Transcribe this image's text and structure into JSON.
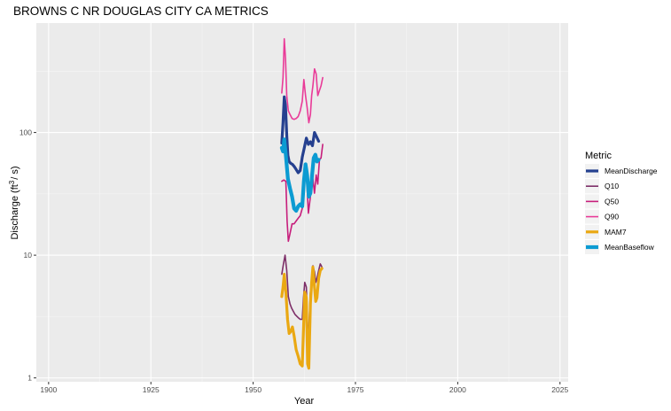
{
  "chart_data": {
    "type": "line",
    "title": "BROWNS C NR DOUGLAS CITY CA  METRICS",
    "xlabel": "Year",
    "ylabel_main": "Discharge (ft",
    "ylabel_sup": "3",
    "ylabel_mid": "/ s)",
    "xlim": [
      1897,
      2027
    ],
    "ylim": [
      0.93,
      780
    ],
    "log_y": true,
    "x_ticks": [
      1900,
      1925,
      1950,
      1975,
      2000,
      2025
    ],
    "x_tick_labels": [
      "1900",
      "1925",
      "1950",
      "1975",
      "2000",
      "2025"
    ],
    "y_ticks": [
      1,
      10,
      100
    ],
    "y_tick_labels": [
      "1",
      "10",
      "100"
    ],
    "grid": true,
    "legend": {
      "title": "Metric",
      "position": "right"
    },
    "series": [
      {
        "name": "MeanDischarge",
        "color": "#25408f",
        "width": 3.2,
        "x": [
          1957.0,
          1957.3,
          1957.6,
          1957.9,
          1958.2,
          1958.5,
          1958.8,
          1959.2,
          1959.6,
          1960.0,
          1960.5,
          1961.0,
          1961.5,
          1962.0,
          1962.5,
          1963.0,
          1963.5,
          1964.0,
          1964.5,
          1965.0,
          1965.5,
          1966.0
        ],
        "y": [
          82,
          120,
          195,
          165,
          95,
          65,
          58,
          56,
          55,
          53,
          50,
          47,
          49,
          63,
          75,
          90,
          80,
          84,
          78,
          100,
          92,
          85
        ]
      },
      {
        "name": "Q10",
        "color": "#7d2e68",
        "width": 1.6,
        "x": [
          1957.0,
          1957.4,
          1957.8,
          1958.2,
          1958.6,
          1959.0,
          1959.4,
          1959.8,
          1960.2,
          1960.6,
          1961.0,
          1961.5,
          1962.0,
          1962.3,
          1962.6,
          1963.0,
          1963.3,
          1963.6,
          1964.0,
          1964.3,
          1964.6,
          1965.0,
          1965.3,
          1965.6,
          1966.0,
          1966.4,
          1966.8
        ],
        "y": [
          7.0,
          8.5,
          10.0,
          7.5,
          4.6,
          4.0,
          3.7,
          3.5,
          3.3,
          3.2,
          3.1,
          3.0,
          3.0,
          4.5,
          6.0,
          5.5,
          2.6,
          2.5,
          5.0,
          5.5,
          8.2,
          7.3,
          6.0,
          6.5,
          7.5,
          8.5,
          8.0
        ]
      },
      {
        "name": "Q50",
        "color": "#c71e7c",
        "width": 1.6,
        "x": [
          1957.0,
          1957.5,
          1958.0,
          1958.3,
          1958.6,
          1959.0,
          1959.5,
          1960.0,
          1960.5,
          1961.0,
          1961.5,
          1962.0,
          1962.5,
          1963.0,
          1963.5,
          1964.0,
          1964.3,
          1964.6,
          1965.0,
          1965.4,
          1965.8,
          1966.2,
          1966.6,
          1967.0
        ],
        "y": [
          40,
          41,
          40,
          19,
          13,
          15,
          18,
          18,
          19,
          20,
          21,
          24,
          42,
          48,
          22,
          30,
          40,
          42,
          32,
          45,
          38,
          60,
          62,
          80
        ]
      },
      {
        "name": "Q90",
        "color": "#e93b98",
        "width": 1.6,
        "x": [
          1957.0,
          1957.3,
          1957.6,
          1957.9,
          1958.2,
          1958.6,
          1959.0,
          1959.5,
          1960.0,
          1960.5,
          1961.0,
          1961.5,
          1962.0,
          1962.4,
          1962.8,
          1963.2,
          1963.6,
          1964.0,
          1964.3,
          1964.6,
          1965.0,
          1965.4,
          1965.8,
          1966.2,
          1966.6,
          1967.0
        ],
        "y": [
          210,
          280,
          580,
          400,
          200,
          150,
          140,
          130,
          128,
          130,
          135,
          150,
          180,
          270,
          200,
          160,
          120,
          140,
          200,
          240,
          330,
          300,
          200,
          220,
          240,
          280
        ]
      },
      {
        "name": "MAM7",
        "color": "#eaa812",
        "width": 3.2,
        "x": [
          1957.0,
          1957.3,
          1957.6,
          1958.0,
          1958.4,
          1958.8,
          1959.2,
          1959.6,
          1960.0,
          1960.5,
          1961.0,
          1961.5,
          1962.0,
          1962.3,
          1962.6,
          1963.0,
          1963.3,
          1963.6,
          1964.0,
          1964.3,
          1964.6,
          1965.0,
          1965.3,
          1965.6,
          1966.0,
          1966.4,
          1966.8
        ],
        "y": [
          4.6,
          5.5,
          7.0,
          5.0,
          3.0,
          2.3,
          2.4,
          2.6,
          2.2,
          1.7,
          1.5,
          1.3,
          1.25,
          2.5,
          5.0,
          4.5,
          1.3,
          1.2,
          4.0,
          6.0,
          8.0,
          5.5,
          4.2,
          4.5,
          6.5,
          7.5,
          7.8
        ]
      },
      {
        "name": "MeanBaseflow",
        "color": "#0c9bd2",
        "width": 4.2,
        "x": [
          1957.0,
          1957.3,
          1957.6,
          1958.0,
          1958.5,
          1959.0,
          1959.5,
          1960.0,
          1960.5,
          1961.0,
          1961.5,
          1962.0,
          1962.4,
          1962.8,
          1963.2,
          1963.6,
          1964.0,
          1964.4,
          1964.8,
          1965.2,
          1965.6,
          1966.0
        ],
        "y": [
          75,
          70,
          88,
          65,
          42,
          35,
          30,
          24,
          23,
          25,
          26,
          25,
          40,
          55,
          45,
          30,
          32,
          45,
          62,
          66,
          58,
          60
        ]
      }
    ]
  }
}
